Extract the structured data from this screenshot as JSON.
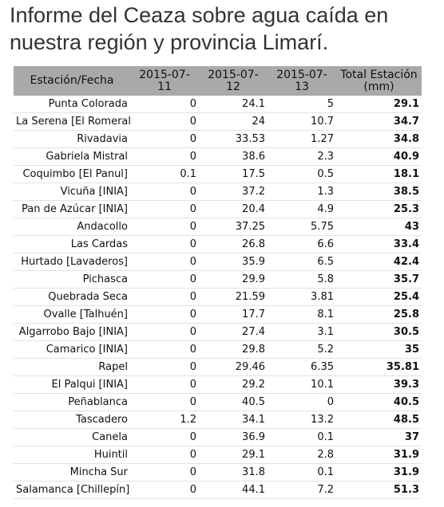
{
  "title": "Informe del Ceaza sobre agua caída en nuestra región y provincia Limarí.",
  "table": {
    "header": [
      "Estación/Fecha",
      "2015-07-11",
      "2015-07-12",
      "2015-07-13",
      "Total Estación (mm)"
    ],
    "rows": [
      [
        "Punta Colorada",
        0,
        24.1,
        5,
        29.1
      ],
      [
        "La Serena [El Romeral]",
        0,
        24,
        10.7,
        34.7
      ],
      [
        "Rivadavia",
        0,
        33.53,
        1.27,
        34.8
      ],
      [
        "Gabriela Mistral",
        0,
        38.6,
        2.3,
        40.9
      ],
      [
        "Coquimbo [El Panul]",
        0.1,
        17.5,
        0.5,
        18.1
      ],
      [
        "Vicuña [INIA]",
        0,
        37.2,
        1.3,
        38.5
      ],
      [
        "Pan de Azúcar [INIA]",
        0,
        20.4,
        4.9,
        25.3
      ],
      [
        "Andacollo",
        0,
        37.25,
        5.75,
        43
      ],
      [
        "Las Cardas",
        0,
        26.8,
        6.6,
        33.4
      ],
      [
        "Hurtado [Lavaderos]",
        0,
        35.9,
        6.5,
        42.4
      ],
      [
        "Pichasca",
        0,
        29.9,
        5.8,
        35.7
      ],
      [
        "Quebrada Seca",
        0,
        21.59,
        3.81,
        25.4
      ],
      [
        "Ovalle [Talhuén]",
        0,
        17.7,
        8.1,
        25.8
      ],
      [
        "Algarrobo Bajo [INIA]",
        0,
        27.4,
        3.1,
        30.5
      ],
      [
        "Camarico [INIA]",
        0,
        29.8,
        5.2,
        35
      ],
      [
        "Rapel",
        0,
        29.46,
        6.35,
        35.81
      ],
      [
        "El Palqui [INIA]",
        0,
        29.2,
        10.1,
        39.3
      ],
      [
        "Peñablanca",
        0,
        40.5,
        0,
        40.5
      ],
      [
        "Tascadero",
        1.2,
        34.1,
        13.2,
        48.5
      ],
      [
        "Canela",
        0,
        36.9,
        0.1,
        37
      ],
      [
        "Huintil",
        0,
        29.1,
        2.8,
        31.9
      ],
      [
        "Mincha Sur",
        0,
        31.8,
        0.1,
        31.9
      ],
      [
        "Salamanca [Chillepín]",
        0,
        44.1,
        7.2,
        51.3
      ]
    ]
  }
}
